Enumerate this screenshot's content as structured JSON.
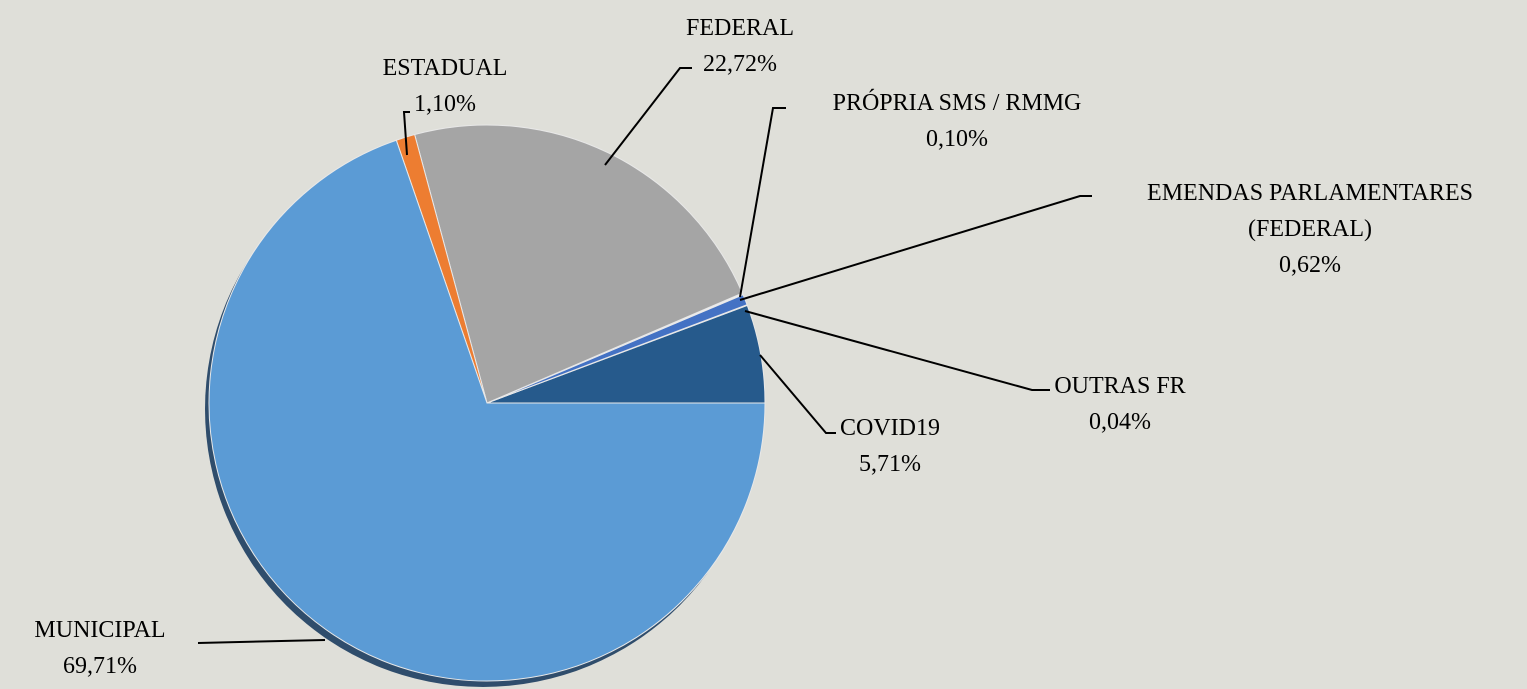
{
  "chart_data": {
    "type": "pie",
    "categories": [
      "COVID19",
      "OUTRAS FR",
      "EMENDAS PARLAMENTARES (FEDERAL)",
      "PRÓPRIA SMS / RMMG",
      "FEDERAL",
      "ESTADUAL",
      "MUNICIPAL"
    ],
    "values": [
      5.71,
      0.04,
      0.62,
      0.1,
      22.72,
      1.1,
      69.71
    ],
    "value_labels": [
      "5,71%",
      "0,04%",
      "0,62%",
      "0,10%",
      "22,72%",
      "1,10%",
      "69,71%"
    ],
    "colors": [
      "#265a8c",
      "#5a5a5a",
      "#4472c4",
      "#f0f0f0",
      "#a5a5a5",
      "#ed7d31",
      "#5b9bd5"
    ]
  }
}
